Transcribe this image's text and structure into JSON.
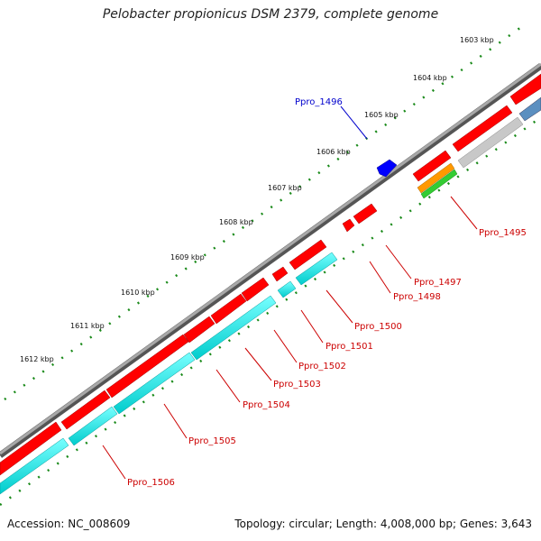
{
  "title": "Pelobacter propionicus DSM 2379, complete genome",
  "footer": {
    "accession": "Accession: NC_008609",
    "summary": "Topology: circular; Length: 4,008,000 bp; Genes: 3,643"
  },
  "ticks": [
    "1603 kbp",
    "1604 kbp",
    "1605 kbp",
    "1606 kbp",
    "1607 kbp",
    "1608 kbp",
    "1609 kbp",
    "1610 kbp",
    "1611 kbp",
    "1612 kbp"
  ],
  "genes": [
    "Ppro_1496",
    "Ppro_1495",
    "Ppro_1497",
    "Ppro_1498",
    "Ppro_1500",
    "Ppro_1501",
    "Ppro_1502",
    "Ppro_1503",
    "Ppro_1504",
    "Ppro_1505",
    "Ppro_1506"
  ],
  "colors": {
    "cds": "#ff0000",
    "backbone": "#808080",
    "rrna": "#00ffff",
    "trna": "#0000ff",
    "tick": "#1a8a1a",
    "label_red": "#cc0000",
    "label_blue": "#0000cc"
  }
}
